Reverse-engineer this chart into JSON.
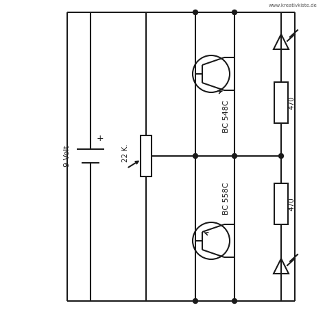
{
  "bg_color": "#ffffff",
  "line_color": "#1a1a1a",
  "lw": 1.5,
  "dot_r": 3.5,
  "watermark": "www.kreativkiste.de",
  "label_9v": "9 Volt",
  "label_22k": "22 K.",
  "label_bc548": "BC 548C",
  "label_bc558": "BC 558C",
  "label_470": "470",
  "plus_sign": "+"
}
